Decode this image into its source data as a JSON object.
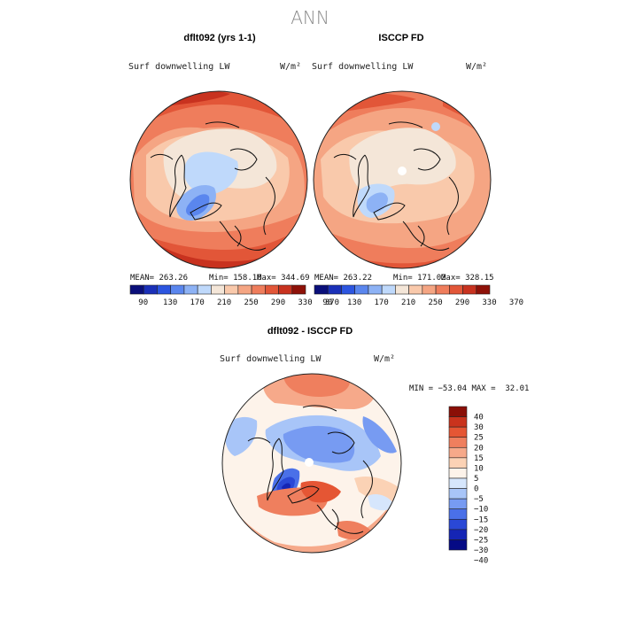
{
  "figure": {
    "title": "ANN"
  },
  "panels": [
    {
      "title": "dflt092 (yrs 1-1)",
      "field": "Surf downwelling LW",
      "units": "W/m²",
      "stats": {
        "mean": "MEAN= 263.26",
        "min": "Min= 158.10",
        "max": "Max= 344.69"
      }
    },
    {
      "title": "ISCCP FD",
      "field": "Surf downwelling LW",
      "units": "W/m²",
      "stats": {
        "mean": "MEAN= 263.22",
        "min": "Min= 171.02",
        "max": "Max= 328.15"
      }
    },
    {
      "title": "dflt092 - ISCCP FD",
      "field": "Surf downwelling LW",
      "units": "W/m²",
      "stats": {
        "minmax": "MIN = −53.04 MAX =  32.01"
      }
    }
  ],
  "colors": {
    "abs_scale": [
      "#0a0f7a",
      "#1a30b8",
      "#2c55e0",
      "#5a86ee",
      "#8db2f5",
      "#bfd9fb",
      "#f4e6d8",
      "#f9c9ab",
      "#f5a583",
      "#ef7d5c",
      "#e25638",
      "#c8321f",
      "#8e1108"
    ],
    "diff_scale": [
      "#050a85",
      "#1525b5",
      "#2a48d6",
      "#4a70e8",
      "#779bf2",
      "#a8c5f8",
      "#d6e6fc",
      "#fdf3ea",
      "#fbd2b5",
      "#f6a98a",
      "#ef7f5e",
      "#e55634",
      "#c9331d",
      "#8a0f07"
    ]
  },
  "chart_data": [
    {
      "type": "heatmap",
      "projection": "north-polar-stereographic",
      "title": "dflt092 (yrs 1-1)",
      "variable": "Surf downwelling LW",
      "units": "W/m2",
      "mean": 263.26,
      "min": 158.1,
      "max": 344.69,
      "colorbar_ticks": [
        90,
        130,
        170,
        210,
        250,
        290,
        330,
        370
      ]
    },
    {
      "type": "heatmap",
      "projection": "north-polar-stereographic",
      "title": "ISCCP FD",
      "variable": "Surf downwelling LW",
      "units": "W/m2",
      "mean": 263.22,
      "min": 171.02,
      "max": 328.15,
      "colorbar_ticks": [
        90,
        130,
        170,
        210,
        250,
        290,
        330,
        370
      ]
    },
    {
      "type": "heatmap",
      "projection": "north-polar-stereographic",
      "title": "dflt092 - ISCCP FD",
      "variable": "Surf downwelling LW",
      "units": "W/m2",
      "min": -53.04,
      "max": 32.01,
      "colorbar_ticks": [
        40,
        30,
        25,
        20,
        15,
        10,
        5,
        0,
        -5,
        -10,
        -15,
        -20,
        -25,
        -30,
        -40
      ]
    }
  ],
  "tick_labels": {
    "abs": [
      "90",
      "130",
      "170",
      "210",
      "250",
      "290",
      "330",
      "370"
    ],
    "diff": [
      "40",
      "30",
      "25",
      "20",
      "15",
      "10",
      "5",
      "0",
      "−5",
      "−10",
      "−15",
      "−20",
      "−25",
      "−30",
      "−40"
    ]
  }
}
